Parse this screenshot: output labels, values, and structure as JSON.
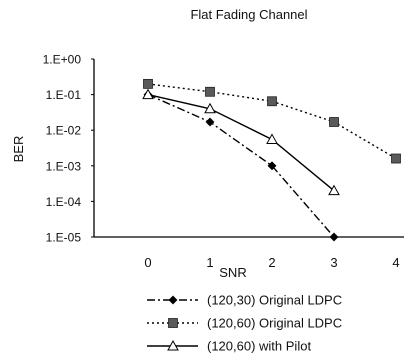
{
  "chart_data": {
    "type": "line",
    "title": "Flat Fading Channel",
    "xlabel": "SNR",
    "ylabel": "BER",
    "x_ticks": [
      "0",
      "1",
      "2",
      "3",
      "4"
    ],
    "y_ticks": [
      "1.E+00",
      "1.E-01",
      "1.E-02",
      "1.E-03",
      "1.E-04",
      "1.E-05"
    ],
    "y_scale": "log",
    "xlim": [
      0,
      4
    ],
    "ylim": [
      1e-05,
      1
    ],
    "grid": false,
    "legend_position": "bottom",
    "series": [
      {
        "name": "(120,30) Original LDPC",
        "marker": "diamond",
        "line_style": "dash-dot",
        "color": "#000000",
        "x": [
          0,
          1,
          2,
          3
        ],
        "y": [
          0.1,
          0.017,
          0.001,
          1e-05
        ]
      },
      {
        "name": "(120,60) Original LDPC",
        "marker": "square",
        "line_style": "dotted",
        "color": "#000000",
        "x": [
          0,
          1,
          2,
          3,
          4
        ],
        "y": [
          0.2,
          0.12,
          0.065,
          0.017,
          0.0016
        ]
      },
      {
        "name": "(120,60) with Pilot",
        "marker": "triangle",
        "line_style": "solid",
        "color": "#000000",
        "x": [
          0,
          1,
          2,
          3
        ],
        "y": [
          0.1,
          0.04,
          0.0055,
          0.0002
        ]
      }
    ]
  }
}
